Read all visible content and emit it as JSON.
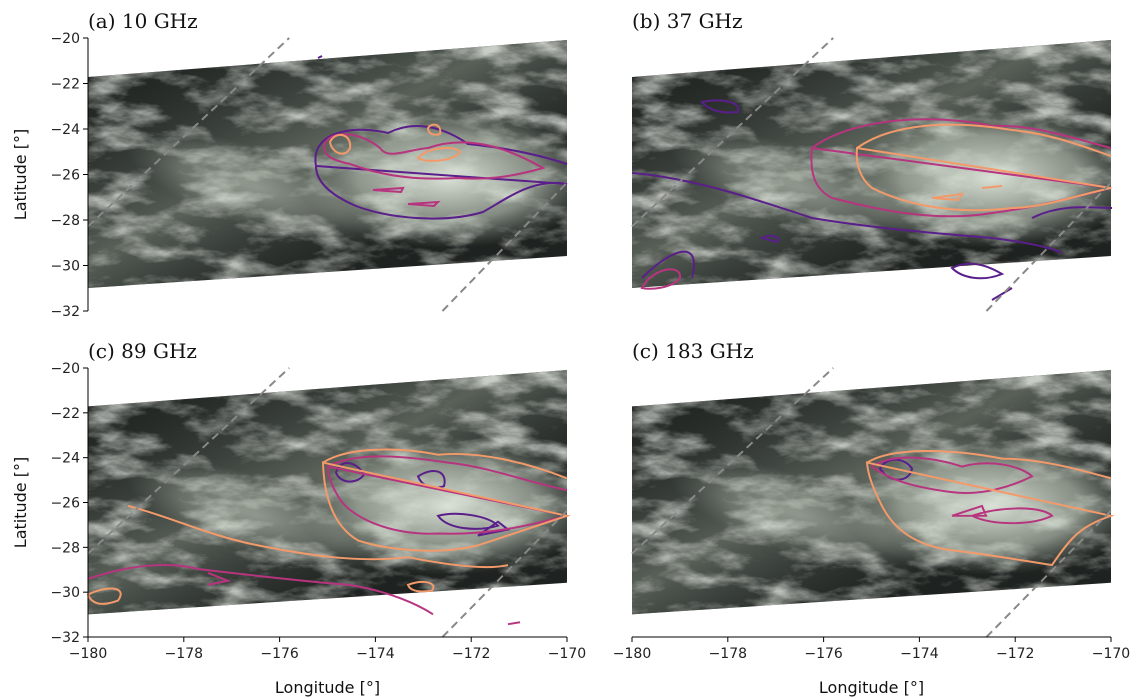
{
  "chart_data": [
    {
      "type": "image",
      "title": "(a) 10 GHz",
      "ylabel": "Latitude [°]",
      "xlim": [
        -180,
        -170
      ],
      "ylim": [
        -32,
        -20
      ],
      "yticks": [
        {
          "value": -20,
          "label": "−20"
        },
        {
          "value": -22,
          "label": "−22"
        },
        {
          "value": -24,
          "label": "−24"
        },
        {
          "value": -26,
          "label": "−26"
        },
        {
          "value": -28,
          "label": "−28"
        },
        {
          "value": -30,
          "label": "−30"
        },
        {
          "value": -32,
          "label": "−32"
        }
      ]
    },
    {
      "type": "image",
      "title": "(b) 37 GHz",
      "xlim": [
        -180,
        -170
      ],
      "ylim": [
        -32,
        -20
      ]
    },
    {
      "type": "image",
      "title": "(c) 89 GHz",
      "ylabel": "Latitude [°]",
      "xlabel": "Longitude [°]",
      "xlim": [
        -180,
        -170
      ],
      "ylim": [
        -32,
        -20
      ],
      "yticks": [
        {
          "value": -20,
          "label": "−20"
        },
        {
          "value": -22,
          "label": "−22"
        },
        {
          "value": -24,
          "label": "−24"
        },
        {
          "value": -26,
          "label": "−26"
        },
        {
          "value": -28,
          "label": "−28"
        },
        {
          "value": -30,
          "label": "−30"
        },
        {
          "value": -32,
          "label": "−32"
        }
      ],
      "xticks": [
        {
          "value": -180,
          "label": "−180"
        },
        {
          "value": -178,
          "label": "−178"
        },
        {
          "value": -176,
          "label": "−176"
        },
        {
          "value": -174,
          "label": "−174"
        },
        {
          "value": -172,
          "label": "−172"
        },
        {
          "value": -170,
          "label": "−170"
        }
      ]
    },
    {
      "type": "image",
      "title": "(c) 183 GHz",
      "xlabel": "Longitude [°]",
      "xlim": [
        -180,
        -170
      ],
      "ylim": [
        -32,
        -20
      ],
      "xticks": [
        {
          "value": -180,
          "label": "−180"
        },
        {
          "value": -178,
          "label": "−178"
        },
        {
          "value": -176,
          "label": "−176"
        },
        {
          "value": -174,
          "label": "−174"
        },
        {
          "value": -172,
          "label": "−172"
        },
        {
          "value": -170,
          "label": "−170"
        }
      ]
    }
  ]
}
